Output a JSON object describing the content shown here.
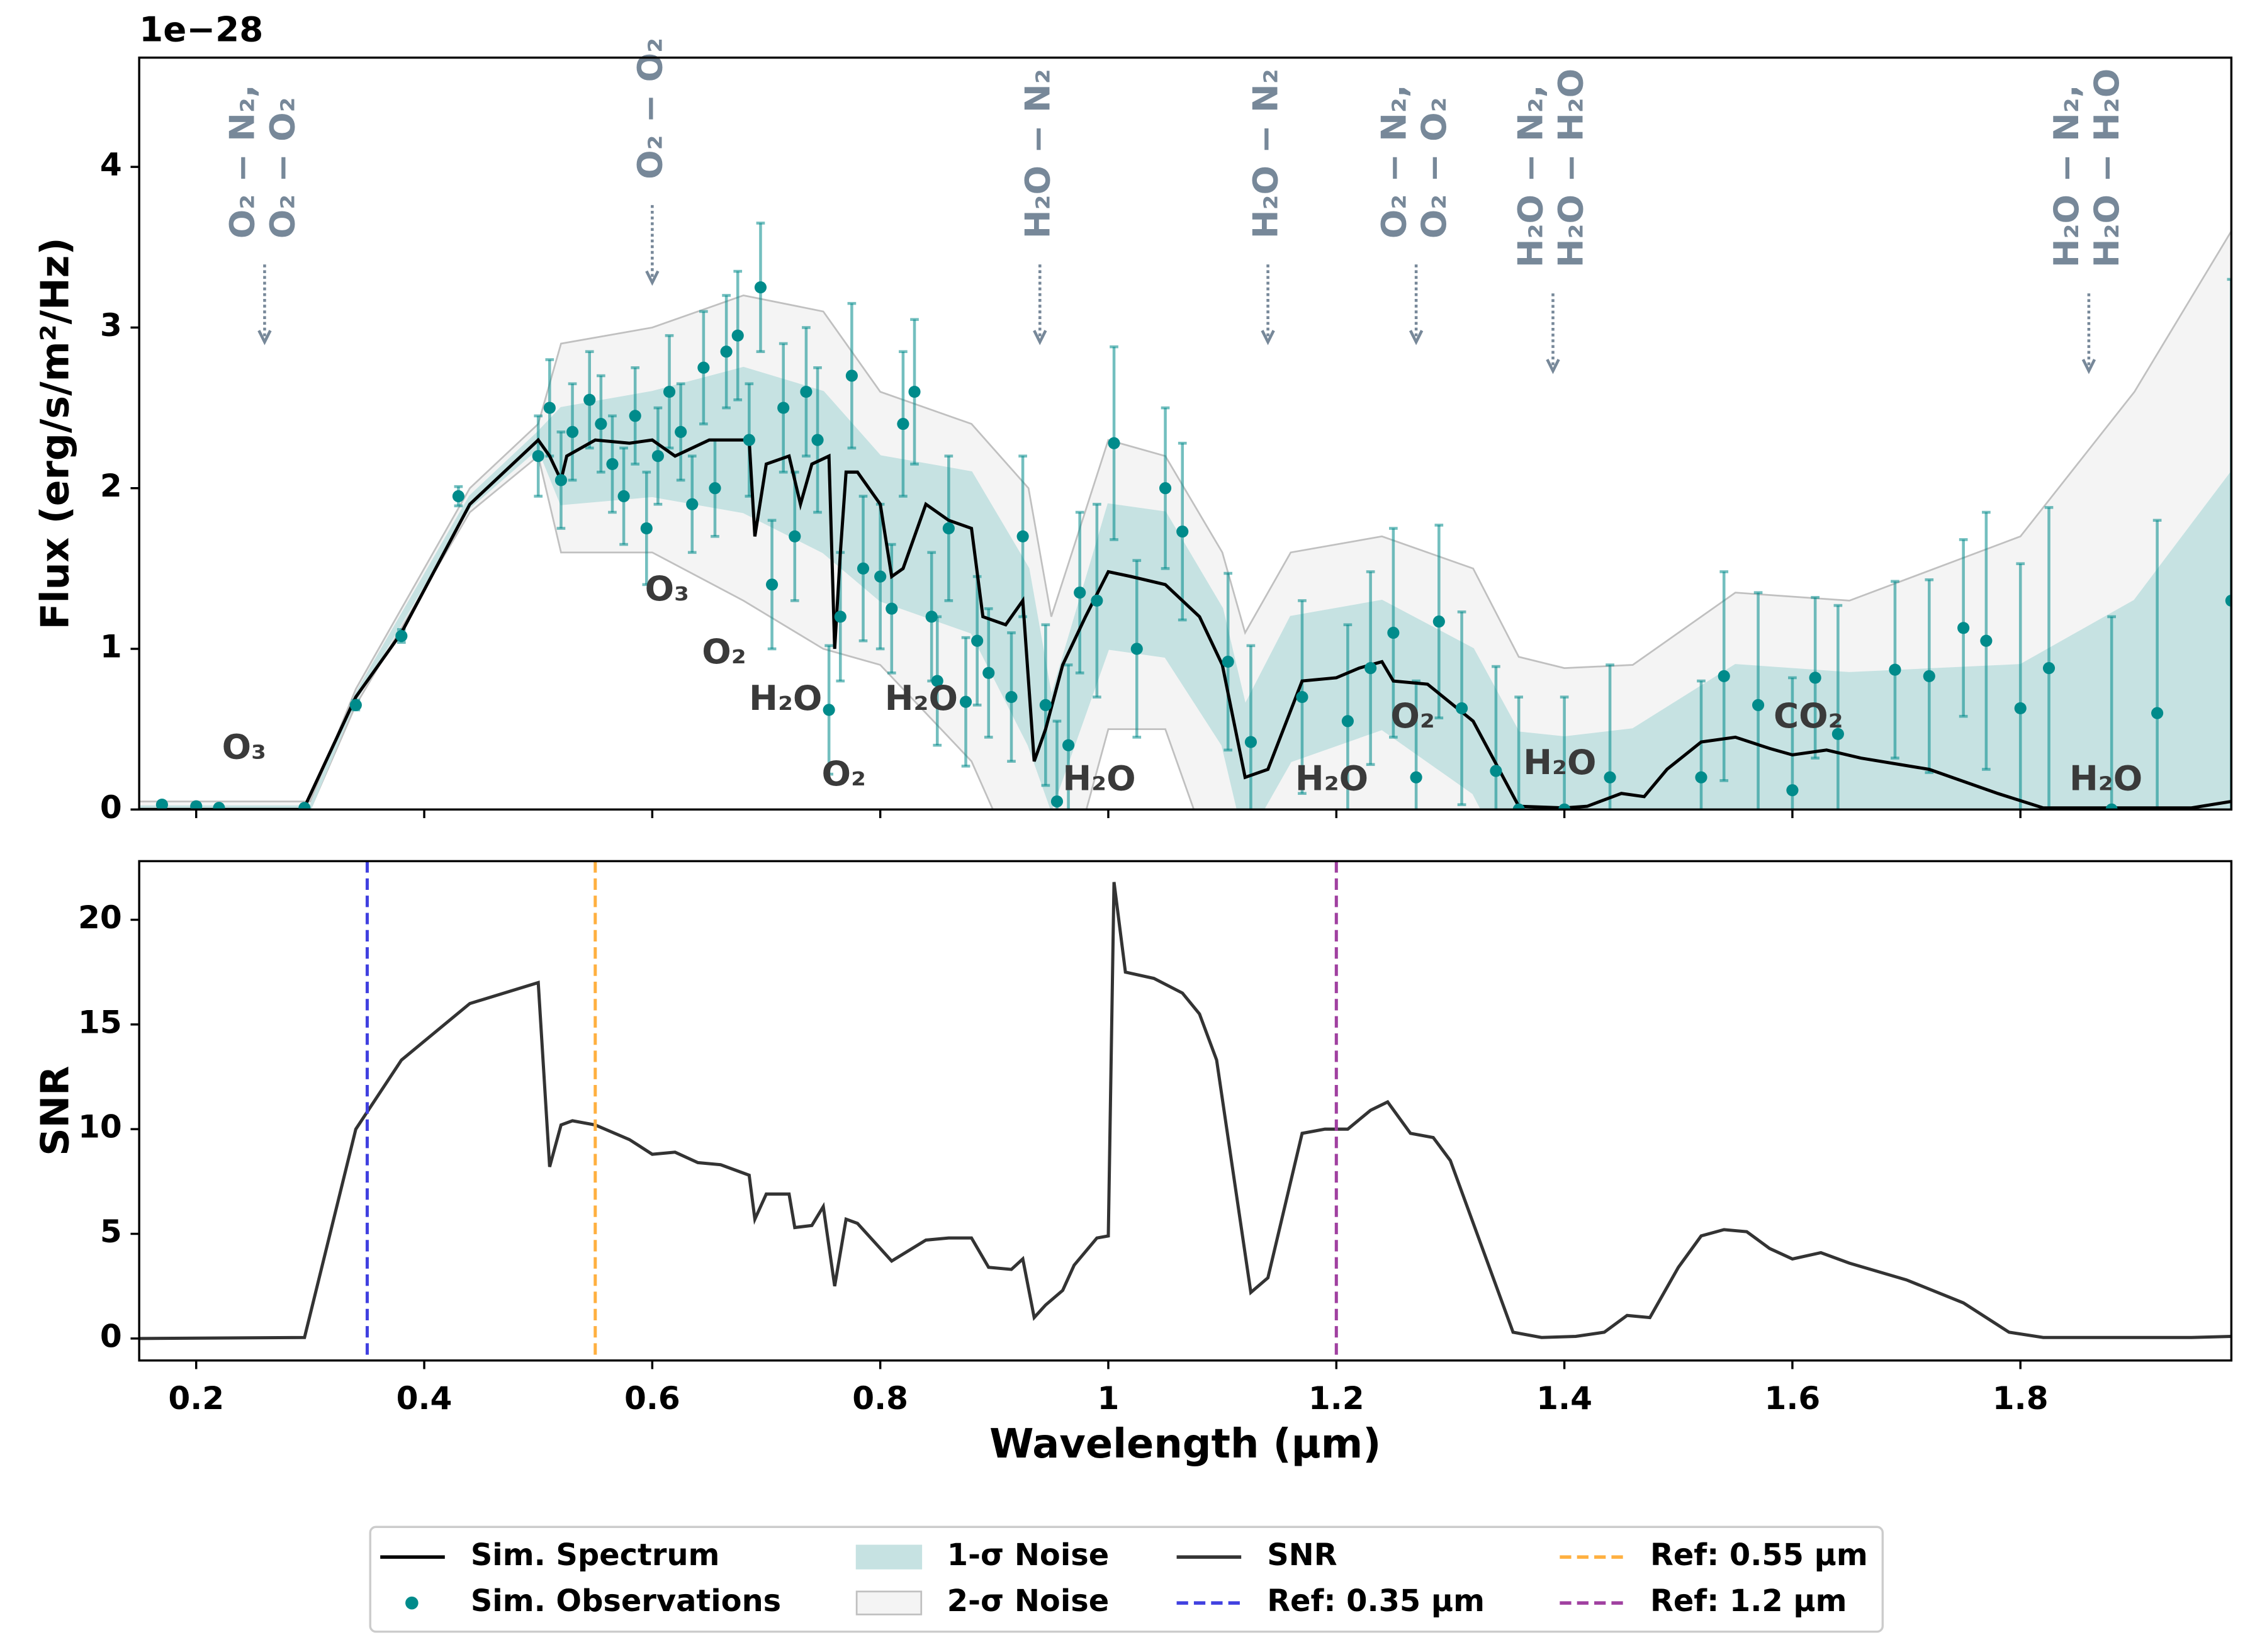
{
  "chart_data": [
    {
      "type": "line",
      "offset_label": "1e−28",
      "ylabel": "Flux (erg/s/m²/Hz)",
      "xlim": [
        0.15,
        1.985
      ],
      "ylim": [
        0,
        4.68
      ],
      "xticks": [
        0.2,
        0.4,
        0.6,
        0.8,
        1.0,
        1.2,
        1.4,
        1.6,
        1.8
      ],
      "yticks": [
        0,
        1,
        2,
        3,
        4
      ],
      "xtick_labels": false,
      "spectrum": {
        "name": "Sim. Spectrum",
        "color": "#000000",
        "x": [
          0.15,
          0.294,
          0.34,
          0.38,
          0.44,
          0.5,
          0.51,
          0.52,
          0.525,
          0.55,
          0.58,
          0.6,
          0.62,
          0.65,
          0.67,
          0.685,
          0.69,
          0.7,
          0.72,
          0.73,
          0.74,
          0.755,
          0.76,
          0.765,
          0.77,
          0.78,
          0.8,
          0.81,
          0.82,
          0.84,
          0.86,
          0.88,
          0.89,
          0.91,
          0.925,
          0.935,
          0.945,
          0.96,
          0.98,
          1.0,
          1.02,
          1.05,
          1.08,
          1.1,
          1.12,
          1.14,
          1.17,
          1.2,
          1.22,
          1.24,
          1.25,
          1.28,
          1.32,
          1.36,
          1.4,
          1.42,
          1.45,
          1.47,
          1.49,
          1.52,
          1.55,
          1.58,
          1.6,
          1.63,
          1.66,
          1.72,
          1.78,
          1.82,
          1.95,
          1.985
        ],
        "values": [
          0,
          0,
          0.7,
          1.1,
          1.9,
          2.3,
          2.2,
          2.05,
          2.2,
          2.3,
          2.28,
          2.3,
          2.2,
          2.3,
          2.3,
          2.3,
          1.7,
          2.15,
          2.2,
          1.9,
          2.15,
          2.2,
          1.0,
          1.6,
          2.1,
          2.1,
          1.9,
          1.45,
          1.5,
          1.9,
          1.8,
          1.75,
          1.2,
          1.15,
          1.3,
          0.3,
          0.5,
          0.9,
          1.2,
          1.48,
          1.45,
          1.4,
          1.2,
          0.9,
          0.2,
          0.25,
          0.8,
          0.82,
          0.88,
          0.92,
          0.8,
          0.78,
          0.55,
          0.02,
          0.01,
          0.02,
          0.1,
          0.08,
          0.25,
          0.42,
          0.45,
          0.38,
          0.34,
          0.37,
          0.32,
          0.25,
          0.1,
          0.01,
          0.01,
          0.05
        ]
      },
      "observations": {
        "name": "Sim. Observations",
        "color": "#008b8b",
        "x": [
          0.17,
          0.2,
          0.22,
          0.295,
          0.34,
          0.38,
          0.43,
          0.5,
          0.51,
          0.52,
          0.53,
          0.545,
          0.555,
          0.565,
          0.575,
          0.585,
          0.595,
          0.605,
          0.615,
          0.625,
          0.635,
          0.645,
          0.655,
          0.665,
          0.675,
          0.685,
          0.695,
          0.705,
          0.715,
          0.725,
          0.735,
          0.745,
          0.755,
          0.765,
          0.775,
          0.785,
          0.8,
          0.81,
          0.82,
          0.83,
          0.845,
          0.85,
          0.86,
          0.875,
          0.885,
          0.895,
          0.915,
          0.925,
          0.945,
          0.955,
          0.965,
          0.975,
          0.99,
          1.005,
          1.025,
          1.05,
          1.065,
          1.105,
          1.125,
          1.17,
          1.21,
          1.23,
          1.25,
          1.27,
          1.29,
          1.31,
          1.34,
          1.36,
          1.4,
          1.44,
          1.52,
          1.54,
          1.57,
          1.6,
          1.62,
          1.64,
          1.69,
          1.72,
          1.75,
          1.77,
          1.8,
          1.825,
          1.88,
          1.92,
          1.985
        ],
        "values": [
          0.03,
          0.02,
          0.01,
          0.01,
          0.65,
          1.08,
          1.95,
          2.2,
          2.5,
          2.05,
          2.35,
          2.55,
          2.4,
          2.15,
          1.95,
          2.45,
          1.75,
          2.2,
          2.6,
          2.35,
          1.9,
          2.75,
          2.0,
          2.85,
          2.95,
          2.3,
          3.25,
          1.4,
          2.5,
          1.7,
          2.6,
          2.3,
          0.62,
          1.2,
          2.7,
          1.5,
          1.45,
          1.25,
          2.4,
          2.6,
          1.2,
          0.8,
          1.75,
          0.67,
          1.05,
          0.85,
          0.7,
          1.7,
          0.65,
          0.05,
          0.4,
          1.35,
          1.3,
          2.28,
          1.0,
          2.0,
          1.73,
          0.92,
          0.42,
          0.7,
          0.55,
          0.88,
          1.1,
          0.2,
          1.17,
          0.63,
          0.24,
          0.0,
          0.0,
          0.2,
          0.2,
          0.83,
          0.65,
          0.12,
          0.82,
          0.47,
          0.87,
          0.83,
          1.13,
          1.05,
          0.63,
          0.88,
          0.0,
          0.6,
          1.3
        ],
        "errors": [
          0.02,
          0.02,
          0.02,
          0.02,
          0.03,
          0.04,
          0.06,
          0.25,
          0.3,
          0.3,
          0.3,
          0.3,
          0.3,
          0.3,
          0.3,
          0.3,
          0.35,
          0.3,
          0.35,
          0.3,
          0.3,
          0.35,
          0.3,
          0.35,
          0.4,
          0.35,
          0.4,
          0.4,
          0.4,
          0.4,
          0.4,
          0.45,
          0.4,
          0.4,
          0.45,
          0.45,
          0.45,
          0.4,
          0.45,
          0.45,
          0.4,
          0.4,
          0.45,
          0.4,
          0.4,
          0.4,
          0.4,
          0.5,
          0.5,
          0.5,
          0.5,
          0.5,
          0.6,
          0.6,
          0.55,
          0.5,
          0.55,
          0.55,
          0.6,
          0.6,
          0.6,
          0.6,
          0.65,
          0.6,
          0.6,
          0.6,
          0.65,
          0.7,
          0.7,
          0.7,
          0.6,
          0.65,
          0.7,
          0.7,
          0.5,
          0.8,
          0.55,
          0.6,
          0.55,
          0.8,
          0.9,
          1.0,
          1.2,
          1.2,
          2.0
        ]
      },
      "band_x": [
        0.15,
        0.3,
        0.34,
        0.44,
        0.5,
        0.52,
        0.6,
        0.68,
        0.75,
        0.8,
        0.88,
        0.93,
        0.95,
        1.0,
        1.05,
        1.1,
        1.12,
        1.16,
        1.24,
        1.32,
        1.36,
        1.4,
        1.46,
        1.55,
        1.65,
        1.8,
        1.9,
        1.985
      ],
      "bands": [
        {
          "name": "2-σ Noise",
          "color": "#f4f4f4",
          "edge": "#c0c0c0",
          "upper": [
            0.05,
            0.05,
            0.75,
            2.0,
            2.4,
            2.9,
            3.0,
            3.2,
            3.1,
            2.6,
            2.4,
            2.0,
            1.2,
            2.3,
            2.2,
            1.6,
            1.1,
            1.6,
            1.7,
            1.5,
            0.95,
            0.88,
            0.9,
            1.35,
            1.3,
            1.7,
            2.6,
            3.6
          ],
          "lower": [
            0,
            0,
            0.65,
            1.85,
            2.2,
            1.6,
            1.6,
            1.3,
            1.0,
            0.9,
            0.3,
            -0.5,
            -0.8,
            0.5,
            0.5,
            -0.5,
            -1,
            -0.3,
            -0.1,
            -0.5,
            -0.95,
            -0.9,
            -0.8,
            -0.5,
            -0.6,
            -1.5,
            -2.5,
            -3.5
          ]
        },
        {
          "name": "1-σ Noise",
          "color": "#c6e2e2",
          "edge": "#c6e2e2",
          "upper": [
            0.02,
            0.02,
            0.72,
            1.95,
            2.35,
            2.5,
            2.6,
            2.75,
            2.6,
            2.2,
            2.1,
            1.5,
            0.7,
            1.9,
            1.85,
            1.25,
            0.65,
            1.2,
            1.3,
            1.0,
            0.48,
            0.45,
            0.5,
            0.9,
            0.85,
            0.9,
            1.3,
            2.1
          ],
          "lower": [
            0,
            0,
            0.68,
            1.88,
            2.25,
            1.9,
            1.95,
            1.85,
            1.6,
            1.3,
            1.1,
            0.4,
            0,
            1.0,
            0.95,
            0.4,
            -0.2,
            0.3,
            0.5,
            0.1,
            -0.45,
            -0.45,
            -0.35,
            0,
            -0.1,
            -0.7,
            -1.2,
            -1.9
          ]
        }
      ],
      "line_labels": [
        {
          "text": "O₃",
          "x": 0.242,
          "y": 0.375
        },
        {
          "text": "O₃",
          "x": 0.613,
          "y": 1.36
        },
        {
          "text": "O₂",
          "x": 0.663,
          "y": 0.97
        },
        {
          "text": "H₂O",
          "x": 0.717,
          "y": 0.68
        },
        {
          "text": "H₂O",
          "x": 0.836,
          "y": 0.68
        },
        {
          "text": "O₂",
          "x": 0.768,
          "y": 0.21
        },
        {
          "text": "H₂O",
          "x": 0.992,
          "y": 0.18
        },
        {
          "text": "H₂O",
          "x": 1.196,
          "y": 0.18
        },
        {
          "text": "O₂",
          "x": 1.267,
          "y": 0.57
        },
        {
          "text": "H₂O",
          "x": 1.396,
          "y": 0.28
        },
        {
          "text": "CO₂",
          "x": 1.614,
          "y": 0.57
        },
        {
          "text": "H₂O",
          "x": 1.875,
          "y": 0.18
        }
      ],
      "cia_annotations": [
        {
          "lines": [
            "O₂ − N₂,",
            "O₂ − O₂"
          ],
          "x": 0.26,
          "y": 2.91
        },
        {
          "lines": [
            "O₂ − O₂"
          ],
          "x": 0.6,
          "y": 3.28
        },
        {
          "lines": [
            "H₂O − N₂"
          ],
          "x": 0.94,
          "y": 2.91
        },
        {
          "lines": [
            "H₂O − N₂"
          ],
          "x": 1.14,
          "y": 2.91
        },
        {
          "lines": [
            "O₂ − N₂,",
            "O₂ − O₂"
          ],
          "x": 1.27,
          "y": 2.91
        },
        {
          "lines": [
            "H₂O − N₂,",
            "H₂O − H₂O"
          ],
          "x": 1.39,
          "y": 2.73
        },
        {
          "lines": [
            "H₂O − N₂,",
            "H₂O − H₂O"
          ],
          "x": 1.86,
          "y": 2.73
        }
      ]
    },
    {
      "type": "line",
      "xlabel": "Wavelength (µm)",
      "ylabel": "SNR",
      "xlim": [
        0.15,
        1.985
      ],
      "ylim": [
        -1.05,
        22.8
      ],
      "xticks": [
        0.2,
        0.4,
        0.6,
        0.8,
        1.0,
        1.2,
        1.4,
        1.6,
        1.8
      ],
      "yticks": [
        0,
        5,
        10,
        15,
        20
      ],
      "series": [
        {
          "name": "SNR",
          "color": "#333333",
          "x": [
            0.15,
            0.295,
            0.34,
            0.38,
            0.44,
            0.5,
            0.51,
            0.52,
            0.53,
            0.55,
            0.58,
            0.6,
            0.62,
            0.64,
            0.66,
            0.685,
            0.69,
            0.7,
            0.72,
            0.725,
            0.74,
            0.75,
            0.76,
            0.77,
            0.78,
            0.81,
            0.84,
            0.86,
            0.88,
            0.895,
            0.915,
            0.925,
            0.935,
            0.945,
            0.96,
            0.97,
            0.99,
            1.0,
            1.005,
            1.015,
            1.04,
            1.065,
            1.08,
            1.095,
            1.125,
            1.14,
            1.17,
            1.19,
            1.21,
            1.23,
            1.245,
            1.265,
            1.285,
            1.3,
            1.355,
            1.38,
            1.41,
            1.435,
            1.455,
            1.475,
            1.5,
            1.52,
            1.54,
            1.56,
            1.58,
            1.6,
            1.625,
            1.65,
            1.7,
            1.75,
            1.79,
            1.82,
            1.95,
            1.985
          ],
          "values": [
            0,
            0.05,
            10,
            13.3,
            16,
            17,
            8.2,
            10.2,
            10.4,
            10.2,
            9.5,
            8.8,
            8.9,
            8.4,
            8.3,
            7.8,
            5.7,
            6.9,
            6.9,
            5.3,
            5.4,
            6.3,
            2.5,
            5.7,
            5.5,
            3.7,
            4.7,
            4.8,
            4.8,
            3.4,
            3.3,
            3.8,
            1.0,
            1.6,
            2.3,
            3.5,
            4.8,
            4.9,
            21.8,
            17.5,
            17.2,
            16.5,
            15.5,
            13.3,
            2.2,
            2.9,
            9.8,
            10,
            10,
            10.9,
            11.3,
            9.8,
            9.6,
            8.5,
            0.3,
            0.05,
            0.1,
            0.3,
            1.1,
            1.0,
            3.4,
            4.9,
            5.2,
            5.1,
            4.3,
            3.8,
            4.1,
            3.6,
            2.8,
            1.7,
            0.3,
            0.05,
            0.05,
            0.1
          ]
        }
      ],
      "ref_lines": [
        {
          "name": "Ref: 0.35 µm",
          "color": "#4040e0",
          "x": 0.35
        },
        {
          "name": "Ref: 0.55 µm",
          "color": "#ffb040",
          "x": 0.55
        },
        {
          "name": "Ref: 1.2 µm",
          "color": "#a040a0",
          "x": 1.2
        }
      ]
    }
  ]
}
